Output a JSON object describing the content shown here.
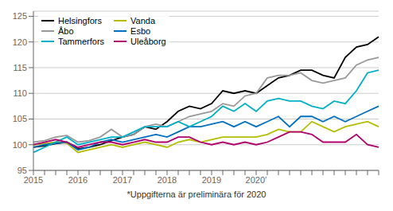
{
  "chart_data": {
    "type": "line",
    "categories": [
      "2015",
      null,
      null,
      null,
      "2016",
      null,
      null,
      null,
      "2017",
      null,
      null,
      null,
      "2018",
      null,
      null,
      null,
      "2019",
      null,
      null,
      null,
      "2020’",
      null,
      null,
      null,
      null,
      null,
      null,
      null,
      null,
      null,
      null,
      null
    ],
    "series": [
      {
        "name": "Helsingfors",
        "color": "#000000",
        "values": [
          99.5,
          99.8,
          100.2,
          100.5,
          99.2,
          99.5,
          100.0,
          100.8,
          101.5,
          102.0,
          103.5,
          103.0,
          104.5,
          106.5,
          107.5,
          107.0,
          108.0,
          110.5,
          110.0,
          110.5,
          110.0,
          111.5,
          113.0,
          113.5,
          114.5,
          114.5,
          113.5,
          113.0,
          117.0,
          119.0,
          119.5,
          121.0
        ]
      },
      {
        "name": "Vanda",
        "color": "#b5bd00",
        "values": [
          100.0,
          100.2,
          100.5,
          100.3,
          98.5,
          99.0,
          99.5,
          100.0,
          99.5,
          100.0,
          100.5,
          100.0,
          99.5,
          100.5,
          101.0,
          100.5,
          101.0,
          101.5,
          101.5,
          101.5,
          101.5,
          102.0,
          103.0,
          102.5,
          102.5,
          104.5,
          103.5,
          102.5,
          103.5,
          104.0,
          104.5,
          103.5
        ]
      },
      {
        "name": "Åbo",
        "color": "#999999",
        "values": [
          100.5,
          100.8,
          101.5,
          101.8,
          100.5,
          100.8,
          101.5,
          103.0,
          101.5,
          102.0,
          103.5,
          104.0,
          103.5,
          104.5,
          105.5,
          106.0,
          106.5,
          108.0,
          107.5,
          109.5,
          110.0,
          113.0,
          113.5,
          113.5,
          114.0,
          112.5,
          112.0,
          112.5,
          113.0,
          115.5,
          116.5,
          117.0
        ]
      },
      {
        "name": "Esbo",
        "color": "#0070c0",
        "values": [
          99.5,
          100.0,
          100.3,
          100.5,
          99.0,
          99.5,
          100.5,
          101.0,
          100.5,
          101.0,
          101.5,
          102.0,
          101.5,
          102.5,
          103.5,
          103.5,
          104.0,
          104.5,
          103.5,
          104.5,
          103.5,
          104.5,
          105.5,
          103.5,
          105.5,
          105.5,
          104.5,
          105.5,
          104.5,
          105.5,
          106.5,
          107.5
        ]
      },
      {
        "name": "Tammerfors",
        "color": "#00b0c8",
        "values": [
          98.5,
          99.5,
          100.5,
          101.5,
          100.0,
          100.5,
          101.0,
          101.5,
          101.5,
          102.5,
          103.5,
          103.5,
          103.5,
          104.5,
          103.5,
          104.5,
          105.5,
          107.5,
          106.5,
          108.0,
          106.5,
          108.5,
          109.0,
          108.5,
          108.5,
          107.5,
          107.0,
          108.5,
          108.0,
          110.5,
          114.0,
          114.5
        ]
      },
      {
        "name": "Uleåborg",
        "color": "#b0006e",
        "values": [
          100.0,
          100.5,
          101.0,
          100.5,
          99.5,
          100.0,
          100.5,
          100.5,
          100.0,
          100.5,
          101.0,
          100.5,
          100.5,
          101.5,
          101.5,
          100.5,
          100.0,
          100.5,
          100.0,
          100.5,
          100.0,
          100.5,
          101.5,
          102.5,
          102.5,
          102.0,
          100.5,
          100.5,
          100.5,
          102.0,
          100.0,
          99.5
        ]
      }
    ],
    "ylim": [
      95,
      126
    ],
    "yticks": [
      95,
      100,
      105,
      110,
      115,
      120,
      125
    ],
    "grid": true,
    "legend": "upper left",
    "annotations": [
      "*Uppgifterna är preliminära för 2020"
    ]
  }
}
